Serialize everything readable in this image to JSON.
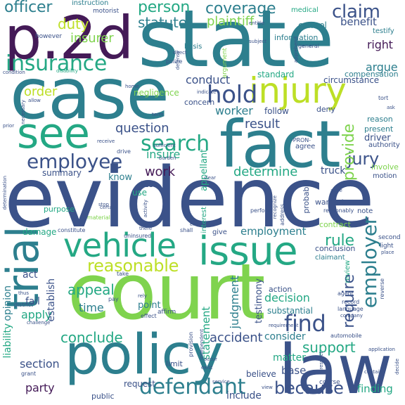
{
  "palette": {
    "dark_purple": "#441a57",
    "blue": "#3b5289",
    "teal": "#2d7f8e",
    "green_teal": "#24a884",
    "lime": "#7fd34e",
    "yellow_green": "#bddf26",
    "background": "#ffffff"
  },
  "words": {
    "evidence": "evidence",
    "court": "court",
    "state": "state",
    "case": "case",
    "p2d": "p.2d",
    "fact": "fact",
    "law": "law",
    "policy": "policy",
    "see": "see",
    "injury": "injury",
    "trial": "trial",
    "issue": "issue",
    "vehicle": "vehicle",
    "insurance": "insurance",
    "search": "search",
    "hold": "hold",
    "employee": "employee",
    "defendant": "defendant",
    "employer": "employer",
    "find": "find",
    "because": "because",
    "reasonable": "reasonable",
    "claim": "claim",
    "coverage": "coverage",
    "officer": "officer",
    "person": "person",
    "statute": "statute",
    "duty": "duty",
    "plaintiff": "plaintiff",
    "insurer": "insurer",
    "jury": "jury",
    "provide": "provide",
    "rule": "rule",
    "require": "require",
    "support": "support",
    "determine": "determine",
    "appeal": "appeal",
    "conclude": "conclude",
    "accident": "accident",
    "question": "question",
    "result": "result",
    "work": "work",
    "insure": "insure",
    "worker": "worker",
    "conduct": "conduct",
    "order": "order",
    "right": "right",
    "argue": "argue",
    "benefit": "benefit",
    "driver": "driver",
    "judgment": "judgment",
    "decision": "decision",
    "time": "time",
    "apply": "apply",
    "section": "section",
    "party": "party",
    "establish": "establish",
    "truck": "truck",
    "test": "test",
    "employment": "employment",
    "liability": "liability",
    "opinion": "opinion",
    "statement": "statement",
    "appellant": "appellant",
    "finding": "finding",
    "base": "base",
    "include": "include",
    "consider": "consider",
    "matter": "matter",
    "testimony": "testimony",
    "point": "point",
    "act": "act",
    "fail": "fail",
    "summary": "summary",
    "know": "know",
    "use": "use",
    "damage": "damage",
    "instruction": "instruction",
    "motorist": "motorist",
    "medical": "medical",
    "testify": "testify",
    "control": "control",
    "standard": "standard",
    "information": "information",
    "compensation": "compensation",
    "circumstance": "circumstance",
    "however": "however",
    "basis": "basis",
    "negligence": "negligence",
    "concern": "concern",
    "follow": "follow",
    "deny": "deny",
    "reason": "reason",
    "present": "present",
    "authority": "authority",
    "agree": "agree",
    "involve": "involve",
    "motion": "motion",
    "warrant": "warrant",
    "probable": "probable",
    "contract": "contract",
    "conclusion": "conclusion",
    "claimant": "claimant",
    "review": "review",
    "substantial": "substantial",
    "action": "action",
    "second": "second",
    "light": "light",
    "limit": "limit",
    "request": "request",
    "believe": "believe",
    "public": "public",
    "give": "give",
    "interest": "interest",
    "condition": "condition",
    "disability": "disability",
    "entitle": "entitle",
    "subject": "subject",
    "general": "general",
    "protect": "protect",
    "pronoun": "-PRON-",
    "perform": "perform",
    "purpose": "purpose",
    "material": "material",
    "constitute": "constitute",
    "shall": "shall",
    "district": "district",
    "thus": "thus",
    "challenge": "challenge",
    "affirm": "affirm",
    "effect": "effect",
    "provision": "provision",
    "course": "course",
    "service": "service",
    "application": "application",
    "determination": "determination",
    "necessary": "necessary",
    "prior": "prior",
    "grant": "grant",
    "police": "police",
    "home": "home",
    "term": "term",
    "ask": "ask",
    "tort": "tort",
    "drive": "drive",
    "burden": "burden",
    "clear": "clear",
    "arise": "arise",
    "reasonably": "reasonably",
    "note": "note",
    "place": "place",
    "record": "record",
    "agent": "agent",
    "reverse": "reverse",
    "language": "language",
    "automobile": "automobile",
    "occur": "occur",
    "exist": "exist",
    "view": "view",
    "pay": "pay",
    "rely": "rely",
    "take": "take",
    "indicate": "indicate",
    "direct": "direct",
    "address": "address",
    "receive": "receive",
    "sufficient": "sufficient",
    "independent": "independent",
    "uninsured": "uninsured",
    "activity": "activity",
    "certain": "certain",
    "error": "error",
    "recognize": "recognize",
    "argument": "argument",
    "requirement": "requirement",
    "contain": "contain",
    "company": "company",
    "allow": "allow",
    "defense": "defense",
    "decide": "decide",
    "respect": "respect",
    "stop": "stop",
    "apprehend": "apprehend",
    "there": "there",
    "case_mark": "case",
    "law_mark": "law"
  }
}
